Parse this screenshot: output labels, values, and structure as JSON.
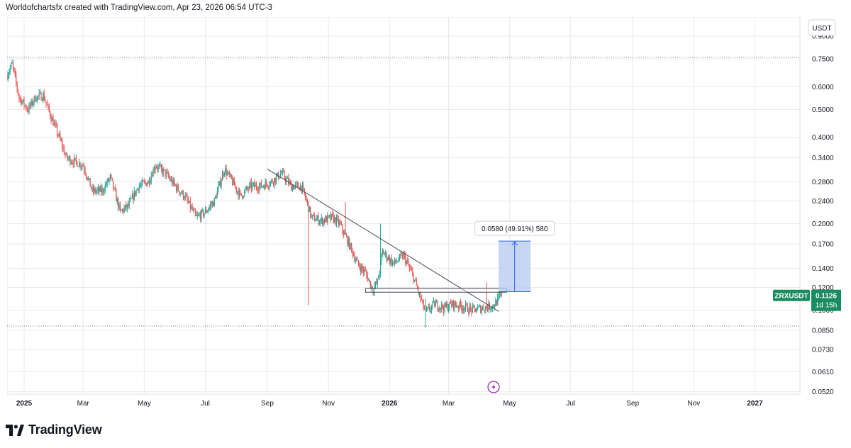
{
  "header": {
    "attribution": "Worldofchartsfx created with TradingView.com, Apr 23, 2026 06:54 UTC-3"
  },
  "footer": {
    "brand": "TradingView"
  },
  "chart_data": {
    "type": "candlestick",
    "symbol": "ZRXUSDT",
    "interval": "1D",
    "currency": "USDT",
    "scale": "log",
    "last_price_label": "0.1126",
    "countdown_label": "1d 15h",
    "y_ticks": [
      "0.9000",
      "0.7500",
      "0.6000",
      "0.5000",
      "0.4000",
      "0.3400",
      "0.2800",
      "0.2400",
      "0.2000",
      "0.1700",
      "0.1400",
      "0.1200",
      "0.1000",
      "0.0850",
      "0.0730",
      "0.0610",
      "0.0520"
    ],
    "y_range": [
      0.051,
      1.05
    ],
    "x_ticks": [
      {
        "label": "2025",
        "date": "2025-01-01",
        "bold": true
      },
      {
        "label": "Mar",
        "date": "2025-03-01",
        "bold": false
      },
      {
        "label": "May",
        "date": "2025-05-01",
        "bold": false
      },
      {
        "label": "Jul",
        "date": "2025-07-01",
        "bold": false
      },
      {
        "label": "Sep",
        "date": "2025-09-01",
        "bold": false
      },
      {
        "label": "Nov",
        "date": "2025-11-01",
        "bold": false
      },
      {
        "label": "2026",
        "date": "2026-01-01",
        "bold": true
      },
      {
        "label": "Mar",
        "date": "2026-03-01",
        "bold": false
      },
      {
        "label": "May",
        "date": "2026-05-01",
        "bold": false
      },
      {
        "label": "Jul",
        "date": "2026-07-01",
        "bold": false
      },
      {
        "label": "Sep",
        "date": "2026-09-01",
        "bold": false
      },
      {
        "label": "Nov",
        "date": "2026-11-01",
        "bold": false
      },
      {
        "label": "2027",
        "date": "2027-01-01",
        "bold": true
      }
    ],
    "x_range": [
      "2024-12-15",
      "2027-02-15"
    ],
    "price_path": [
      [
        "2024-12-15",
        0.66
      ],
      [
        "2024-12-20",
        0.72
      ],
      [
        "2024-12-27",
        0.55
      ],
      [
        "2025-01-05",
        0.5
      ],
      [
        "2025-01-12",
        0.55
      ],
      [
        "2025-01-20",
        0.56
      ],
      [
        "2025-01-28",
        0.47
      ],
      [
        "2025-02-05",
        0.4
      ],
      [
        "2025-02-12",
        0.34
      ],
      [
        "2025-02-20",
        0.33
      ],
      [
        "2025-03-01",
        0.32
      ],
      [
        "2025-03-10",
        0.26
      ],
      [
        "2025-03-20",
        0.26
      ],
      [
        "2025-03-28",
        0.29
      ],
      [
        "2025-04-07",
        0.22
      ],
      [
        "2025-04-15",
        0.23
      ],
      [
        "2025-04-25",
        0.27
      ],
      [
        "2025-05-05",
        0.28
      ],
      [
        "2025-05-12",
        0.32
      ],
      [
        "2025-05-22",
        0.3
      ],
      [
        "2025-06-01",
        0.27
      ],
      [
        "2025-06-10",
        0.25
      ],
      [
        "2025-06-22",
        0.21
      ],
      [
        "2025-07-01",
        0.22
      ],
      [
        "2025-07-10",
        0.24
      ],
      [
        "2025-07-20",
        0.31
      ],
      [
        "2025-07-28",
        0.28
      ],
      [
        "2025-08-05",
        0.25
      ],
      [
        "2025-08-15",
        0.27
      ],
      [
        "2025-08-25",
        0.27
      ],
      [
        "2025-09-05",
        0.28
      ],
      [
        "2025-09-15",
        0.3
      ],
      [
        "2025-09-25",
        0.27
      ],
      [
        "2025-10-05",
        0.27
      ],
      [
        "2025-10-10",
        0.24
      ],
      [
        "2025-10-15",
        0.21
      ],
      [
        "2025-10-25",
        0.205
      ],
      [
        "2025-11-05",
        0.21
      ],
      [
        "2025-11-12",
        0.2
      ],
      [
        "2025-11-20",
        0.175
      ],
      [
        "2025-11-30",
        0.145
      ],
      [
        "2025-12-08",
        0.135
      ],
      [
        "2025-12-15",
        0.118
      ],
      [
        "2025-12-20",
        0.125
      ],
      [
        "2025-12-25",
        0.16
      ],
      [
        "2026-01-05",
        0.145
      ],
      [
        "2026-01-15",
        0.155
      ],
      [
        "2026-01-25",
        0.13
      ],
      [
        "2026-02-01",
        0.11
      ],
      [
        "2026-02-06",
        0.098
      ],
      [
        "2026-02-15",
        0.105
      ],
      [
        "2026-02-25",
        0.102
      ],
      [
        "2026-03-05",
        0.105
      ],
      [
        "2026-03-15",
        0.103
      ],
      [
        "2026-03-25",
        0.1
      ],
      [
        "2026-04-05",
        0.102
      ],
      [
        "2026-04-15",
        0.104
      ],
      [
        "2026-04-23",
        0.1126
      ]
    ],
    "spikes": [
      {
        "date": "2025-10-12",
        "low": 0.104,
        "high": 0.24
      },
      {
        "date": "2025-11-18",
        "low": 0.19,
        "high": 0.238
      },
      {
        "date": "2025-12-23",
        "low": 0.13,
        "high": 0.2
      },
      {
        "date": "2026-02-06",
        "low": 0.087,
        "high": 0.11
      },
      {
        "date": "2026-04-08",
        "low": 0.1,
        "high": 0.125
      }
    ],
    "trendline": {
      "from": [
        "2025-09-01",
        0.31
      ],
      "to": [
        "2026-04-20",
        0.099
      ]
    },
    "horizontal_lines": [
      0.76,
      0.088
    ],
    "support_zone": {
      "from": "2025-12-08",
      "to": "2026-04-28",
      "low": 0.1155,
      "high": 0.119
    },
    "measure": {
      "from_date": "2026-04-20",
      "to_date": "2026-05-22",
      "low": 0.116,
      "high": 0.174,
      "label": "0.0580 (49.91%) 580"
    },
    "colors": {
      "up": "#26a69a",
      "down": "#ef5350",
      "grid": "#e9e9ec",
      "trend": "#434651",
      "measure_fill": "#b4c8ef",
      "measure_line": "#2962ff",
      "price_label": "#1b8b62"
    }
  }
}
